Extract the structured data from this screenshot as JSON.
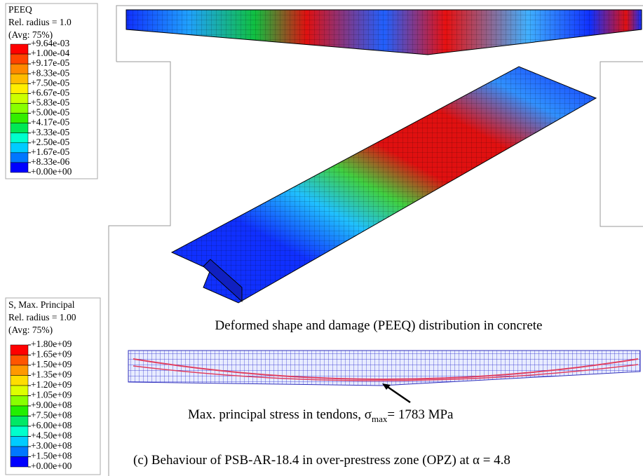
{
  "legends": [
    {
      "title": "PEEQ",
      "radius": "Rel. radius = 1.0",
      "avg": "(Avg: 75%)",
      "labels": [
        "+9.64e-03",
        "+1.00e-04",
        "+9.17e-05",
        "+8.33e-05",
        "+7.50e-05",
        "+6.67e-05",
        "+5.83e-05",
        "+5.00e-05",
        "+4.17e-05",
        "+3.33e-05",
        "+2.50e-05",
        "+1.67e-05",
        "+8.33e-06",
        "+0.00e+00"
      ],
      "colors": [
        "#ff0000",
        "#ff4400",
        "#ff8800",
        "#ffbb00",
        "#ffee00",
        "#ccff00",
        "#88ff00",
        "#33ee00",
        "#00e855",
        "#00ffcc",
        "#00ccff",
        "#0077ff",
        "#0000ff"
      ]
    },
    {
      "title": "S, Max. Principal",
      "radius": "Rel. radius = 1.00",
      "avg": "(Avg: 75%)",
      "labels": [
        "+1.80e+09",
        "+1.65e+09",
        "+1.50e+09",
        "+1.35e+09",
        "+1.20e+09",
        "+1.05e+09",
        "+9.00e+08",
        "+7.50e+08",
        "+6.00e+08",
        "+4.50e+08",
        "+3.00e+08",
        "+1.50e+08",
        "+0.00e+00"
      ],
      "colors": [
        "#ff0000",
        "#ff5500",
        "#ff9900",
        "#ffdd00",
        "#ddff00",
        "#88ff00",
        "#22ee00",
        "#00e866",
        "#00ffcc",
        "#00ccff",
        "#0077ff",
        "#0000ff"
      ]
    }
  ],
  "captions": {
    "concrete": "Deformed shape and damage (PEEQ) distribution in concrete",
    "tendon": {
      "before": "Max. principal stress in tendons, σ",
      "subscript": "max",
      "after": "= 1783 MPa"
    },
    "figure": "(c) Behaviour of PSB-AR-18.4 in over-prestress zone (OPZ) at α = 4.8"
  }
}
